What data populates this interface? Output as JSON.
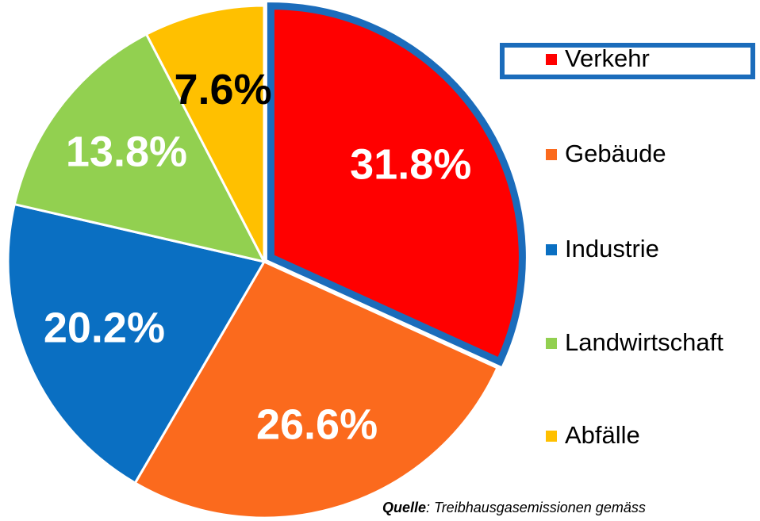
{
  "chart_data": {
    "type": "pie",
    "categories": [
      "Verkehr",
      "Gebäude",
      "Industrie",
      "Landwirtschaft",
      "Abfälle"
    ],
    "values": [
      31.8,
      26.6,
      20.2,
      13.8,
      7.6
    ],
    "value_labels": [
      "31.8%",
      "26.6%",
      "20.2%",
      "13.8%",
      "7.6%"
    ],
    "colors": [
      "#ff0000",
      "#fb6a1d",
      "#0a6fc2",
      "#92d050",
      "#ffc000"
    ],
    "label_colors": [
      "#ffffff",
      "#ffffff",
      "#ffffff",
      "#ffffff",
      "#000000"
    ],
    "highlight_index": 0,
    "highlight_color": "#1b6cbb",
    "legend": "right",
    "source_label": "Quelle",
    "source": ": Treibhausgasemissionen gemäss"
  }
}
